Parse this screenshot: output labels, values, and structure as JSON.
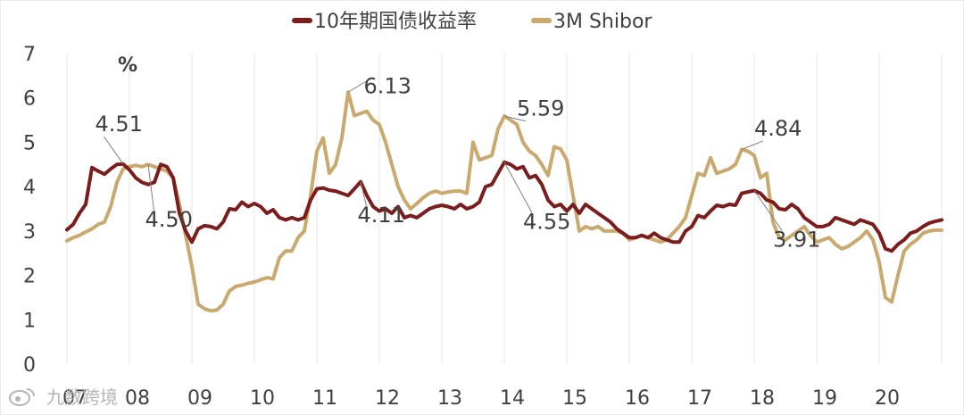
{
  "chart_data": {
    "type": "line",
    "ylabel": "%",
    "ylim": [
      0,
      7
    ],
    "xlim": [
      2007.0,
      2021.0
    ],
    "y_ticks": [
      0,
      1,
      2,
      3,
      4,
      5,
      6,
      7
    ],
    "x_ticks": [
      {
        "value": 2007.0,
        "label": "07"
      },
      {
        "value": 2008.0,
        "label": "08"
      },
      {
        "value": 2009.0,
        "label": "09"
      },
      {
        "value": 2010.0,
        "label": "10"
      },
      {
        "value": 2011.0,
        "label": "11"
      },
      {
        "value": 2012.0,
        "label": "12"
      },
      {
        "value": 2013.0,
        "label": "13"
      },
      {
        "value": 2014.0,
        "label": "14"
      },
      {
        "value": 2015.0,
        "label": "15"
      },
      {
        "value": 2016.0,
        "label": "16"
      },
      {
        "value": 2017.0,
        "label": "17"
      },
      {
        "value": 2018.0,
        "label": "18"
      },
      {
        "value": 2019.0,
        "label": "19"
      },
      {
        "value": 2020.0,
        "label": "20"
      }
    ],
    "grid": "vertical",
    "legend_position": "top",
    "series": [
      {
        "name": "10年期国债收益率",
        "color": "#7b1d1d",
        "points": [
          [
            2007.0,
            3.03
          ],
          [
            2007.1,
            3.15
          ],
          [
            2007.2,
            3.4
          ],
          [
            2007.3,
            3.6
          ],
          [
            2007.4,
            4.43
          ],
          [
            2007.5,
            4.35
          ],
          [
            2007.6,
            4.28
          ],
          [
            2007.7,
            4.4
          ],
          [
            2007.8,
            4.5
          ],
          [
            2007.9,
            4.51
          ],
          [
            2008.0,
            4.38
          ],
          [
            2008.1,
            4.2
          ],
          [
            2008.2,
            4.1
          ],
          [
            2008.3,
            4.05
          ],
          [
            2008.4,
            4.1
          ],
          [
            2008.5,
            4.5
          ],
          [
            2008.6,
            4.45
          ],
          [
            2008.7,
            4.2
          ],
          [
            2008.8,
            3.4
          ],
          [
            2008.9,
            3.0
          ],
          [
            2009.0,
            2.75
          ],
          [
            2009.1,
            3.05
          ],
          [
            2009.2,
            3.12
          ],
          [
            2009.3,
            3.1
          ],
          [
            2009.4,
            3.05
          ],
          [
            2009.5,
            3.2
          ],
          [
            2009.6,
            3.5
          ],
          [
            2009.7,
            3.48
          ],
          [
            2009.8,
            3.65
          ],
          [
            2009.9,
            3.55
          ],
          [
            2010.0,
            3.62
          ],
          [
            2010.1,
            3.55
          ],
          [
            2010.2,
            3.4
          ],
          [
            2010.3,
            3.48
          ],
          [
            2010.4,
            3.3
          ],
          [
            2010.5,
            3.25
          ],
          [
            2010.6,
            3.3
          ],
          [
            2010.7,
            3.25
          ],
          [
            2010.8,
            3.3
          ],
          [
            2010.9,
            3.7
          ],
          [
            2011.0,
            3.95
          ],
          [
            2011.1,
            3.97
          ],
          [
            2011.2,
            3.92
          ],
          [
            2011.3,
            3.9
          ],
          [
            2011.4,
            3.85
          ],
          [
            2011.5,
            3.8
          ],
          [
            2011.6,
            3.95
          ],
          [
            2011.7,
            4.11
          ],
          [
            2011.8,
            3.8
          ],
          [
            2011.9,
            3.55
          ],
          [
            2012.0,
            3.45
          ],
          [
            2012.1,
            3.5
          ],
          [
            2012.2,
            3.4
          ],
          [
            2012.3,
            3.55
          ],
          [
            2012.4,
            3.3
          ],
          [
            2012.5,
            3.35
          ],
          [
            2012.6,
            3.3
          ],
          [
            2012.7,
            3.4
          ],
          [
            2012.8,
            3.5
          ],
          [
            2012.9,
            3.55
          ],
          [
            2013.0,
            3.58
          ],
          [
            2013.1,
            3.55
          ],
          [
            2013.2,
            3.5
          ],
          [
            2013.3,
            3.6
          ],
          [
            2013.4,
            3.5
          ],
          [
            2013.5,
            3.55
          ],
          [
            2013.6,
            3.65
          ],
          [
            2013.7,
            4.0
          ],
          [
            2013.8,
            4.05
          ],
          [
            2013.9,
            4.3
          ],
          [
            2014.0,
            4.55
          ],
          [
            2014.1,
            4.5
          ],
          [
            2014.2,
            4.4
          ],
          [
            2014.3,
            4.45
          ],
          [
            2014.4,
            4.2
          ],
          [
            2014.5,
            4.25
          ],
          [
            2014.6,
            4.05
          ],
          [
            2014.7,
            3.7
          ],
          [
            2014.8,
            3.55
          ],
          [
            2014.9,
            3.6
          ],
          [
            2015.0,
            3.45
          ],
          [
            2015.1,
            3.6
          ],
          [
            2015.2,
            3.4
          ],
          [
            2015.3,
            3.6
          ],
          [
            2015.4,
            3.5
          ],
          [
            2015.5,
            3.4
          ],
          [
            2015.6,
            3.3
          ],
          [
            2015.7,
            3.2
          ],
          [
            2015.8,
            3.05
          ],
          [
            2015.9,
            2.95
          ],
          [
            2016.0,
            2.85
          ],
          [
            2016.1,
            2.85
          ],
          [
            2016.2,
            2.9
          ],
          [
            2016.3,
            2.85
          ],
          [
            2016.4,
            2.95
          ],
          [
            2016.5,
            2.85
          ],
          [
            2016.6,
            2.8
          ],
          [
            2016.7,
            2.75
          ],
          [
            2016.8,
            2.75
          ],
          [
            2016.9,
            3.0
          ],
          [
            2017.0,
            3.1
          ],
          [
            2017.1,
            3.35
          ],
          [
            2017.2,
            3.3
          ],
          [
            2017.3,
            3.45
          ],
          [
            2017.4,
            3.58
          ],
          [
            2017.5,
            3.55
          ],
          [
            2017.6,
            3.6
          ],
          [
            2017.7,
            3.58
          ],
          [
            2017.8,
            3.85
          ],
          [
            2017.9,
            3.88
          ],
          [
            2018.0,
            3.91
          ],
          [
            2018.1,
            3.85
          ],
          [
            2018.2,
            3.7
          ],
          [
            2018.3,
            3.65
          ],
          [
            2018.4,
            3.5
          ],
          [
            2018.5,
            3.48
          ],
          [
            2018.6,
            3.6
          ],
          [
            2018.7,
            3.5
          ],
          [
            2018.8,
            3.3
          ],
          [
            2018.9,
            3.2
          ],
          [
            2019.0,
            3.1
          ],
          [
            2019.1,
            3.1
          ],
          [
            2019.2,
            3.15
          ],
          [
            2019.3,
            3.3
          ],
          [
            2019.4,
            3.25
          ],
          [
            2019.5,
            3.2
          ],
          [
            2019.6,
            3.15
          ],
          [
            2019.7,
            3.25
          ],
          [
            2019.8,
            3.2
          ],
          [
            2019.9,
            3.15
          ],
          [
            2020.0,
            2.95
          ],
          [
            2020.1,
            2.6
          ],
          [
            2020.2,
            2.55
          ],
          [
            2020.3,
            2.7
          ],
          [
            2020.4,
            2.8
          ],
          [
            2020.5,
            2.95
          ],
          [
            2020.6,
            3.0
          ],
          [
            2020.7,
            3.1
          ],
          [
            2020.8,
            3.18
          ],
          [
            2020.9,
            3.22
          ],
          [
            2021.0,
            3.25
          ]
        ]
      },
      {
        "name": "3M Shibor",
        "color": "#c9a96e",
        "points": [
          [
            2007.0,
            2.78
          ],
          [
            2007.1,
            2.85
          ],
          [
            2007.2,
            2.9
          ],
          [
            2007.3,
            2.98
          ],
          [
            2007.4,
            3.05
          ],
          [
            2007.5,
            3.15
          ],
          [
            2007.6,
            3.2
          ],
          [
            2007.7,
            3.55
          ],
          [
            2007.8,
            4.1
          ],
          [
            2007.9,
            4.4
          ],
          [
            2008.0,
            4.45
          ],
          [
            2008.1,
            4.48
          ],
          [
            2008.2,
            4.45
          ],
          [
            2008.3,
            4.5
          ],
          [
            2008.4,
            4.45
          ],
          [
            2008.5,
            4.4
          ],
          [
            2008.6,
            4.35
          ],
          [
            2008.7,
            4.2
          ],
          [
            2008.8,
            3.6
          ],
          [
            2008.9,
            2.9
          ],
          [
            2009.0,
            2.2
          ],
          [
            2009.1,
            1.35
          ],
          [
            2009.2,
            1.25
          ],
          [
            2009.3,
            1.2
          ],
          [
            2009.4,
            1.22
          ],
          [
            2009.5,
            1.35
          ],
          [
            2009.6,
            1.65
          ],
          [
            2009.7,
            1.75
          ],
          [
            2009.8,
            1.78
          ],
          [
            2009.9,
            1.82
          ],
          [
            2010.0,
            1.85
          ],
          [
            2010.1,
            1.9
          ],
          [
            2010.2,
            1.95
          ],
          [
            2010.3,
            1.92
          ],
          [
            2010.4,
            2.4
          ],
          [
            2010.5,
            2.55
          ],
          [
            2010.6,
            2.55
          ],
          [
            2010.7,
            2.85
          ],
          [
            2010.8,
            3.0
          ],
          [
            2010.9,
            3.8
          ],
          [
            2011.0,
            4.8
          ],
          [
            2011.1,
            5.1
          ],
          [
            2011.2,
            4.3
          ],
          [
            2011.3,
            4.5
          ],
          [
            2011.4,
            5.1
          ],
          [
            2011.5,
            6.13
          ],
          [
            2011.6,
            5.6
          ],
          [
            2011.7,
            5.65
          ],
          [
            2011.8,
            5.7
          ],
          [
            2011.9,
            5.5
          ],
          [
            2012.0,
            5.4
          ],
          [
            2012.1,
            5.0
          ],
          [
            2012.2,
            4.5
          ],
          [
            2012.3,
            4.0
          ],
          [
            2012.4,
            3.7
          ],
          [
            2012.5,
            3.5
          ],
          [
            2012.6,
            3.62
          ],
          [
            2012.7,
            3.75
          ],
          [
            2012.8,
            3.85
          ],
          [
            2012.9,
            3.9
          ],
          [
            2013.0,
            3.85
          ],
          [
            2013.1,
            3.88
          ],
          [
            2013.2,
            3.9
          ],
          [
            2013.3,
            3.9
          ],
          [
            2013.4,
            3.85
          ],
          [
            2013.5,
            5.0
          ],
          [
            2013.6,
            4.6
          ],
          [
            2013.7,
            4.65
          ],
          [
            2013.8,
            4.7
          ],
          [
            2013.9,
            5.3
          ],
          [
            2014.0,
            5.59
          ],
          [
            2014.1,
            5.5
          ],
          [
            2014.2,
            5.4
          ],
          [
            2014.3,
            5.0
          ],
          [
            2014.4,
            4.8
          ],
          [
            2014.5,
            4.7
          ],
          [
            2014.6,
            4.5
          ],
          [
            2014.7,
            4.25
          ],
          [
            2014.8,
            4.9
          ],
          [
            2014.9,
            4.85
          ],
          [
            2015.0,
            4.6
          ],
          [
            2015.1,
            3.8
          ],
          [
            2015.2,
            3.0
          ],
          [
            2015.3,
            3.1
          ],
          [
            2015.4,
            3.05
          ],
          [
            2015.5,
            3.1
          ],
          [
            2015.6,
            3.0
          ],
          [
            2015.7,
            3.0
          ],
          [
            2015.8,
            3.0
          ],
          [
            2015.9,
            2.95
          ],
          [
            2016.0,
            2.8
          ],
          [
            2016.1,
            2.85
          ],
          [
            2016.2,
            2.9
          ],
          [
            2016.3,
            2.85
          ],
          [
            2016.4,
            2.8
          ],
          [
            2016.5,
            2.75
          ],
          [
            2016.6,
            2.8
          ],
          [
            2016.7,
            2.95
          ],
          [
            2016.8,
            3.1
          ],
          [
            2016.9,
            3.3
          ],
          [
            2017.0,
            3.8
          ],
          [
            2017.1,
            4.3
          ],
          [
            2017.2,
            4.25
          ],
          [
            2017.3,
            4.65
          ],
          [
            2017.4,
            4.3
          ],
          [
            2017.5,
            4.35
          ],
          [
            2017.6,
            4.4
          ],
          [
            2017.7,
            4.5
          ],
          [
            2017.8,
            4.84
          ],
          [
            2017.9,
            4.8
          ],
          [
            2018.0,
            4.7
          ],
          [
            2018.1,
            4.2
          ],
          [
            2018.2,
            4.3
          ],
          [
            2018.3,
            3.2
          ],
          [
            2018.4,
            2.85
          ],
          [
            2018.5,
            2.8
          ],
          [
            2018.6,
            2.9
          ],
          [
            2018.7,
            3.0
          ],
          [
            2018.8,
            3.1
          ],
          [
            2018.9,
            2.9
          ],
          [
            2019.0,
            2.75
          ],
          [
            2019.1,
            2.8
          ],
          [
            2019.2,
            2.85
          ],
          [
            2019.3,
            2.7
          ],
          [
            2019.4,
            2.6
          ],
          [
            2019.5,
            2.65
          ],
          [
            2019.6,
            2.75
          ],
          [
            2019.7,
            2.85
          ],
          [
            2019.8,
            3.0
          ],
          [
            2019.9,
            2.8
          ],
          [
            2020.0,
            2.3
          ],
          [
            2020.1,
            1.5
          ],
          [
            2020.2,
            1.4
          ],
          [
            2020.3,
            2.0
          ],
          [
            2020.4,
            2.55
          ],
          [
            2020.5,
            2.7
          ],
          [
            2020.6,
            2.8
          ],
          [
            2020.7,
            2.95
          ],
          [
            2020.8,
            3.0
          ],
          [
            2020.9,
            3.02
          ],
          [
            2021.0,
            3.02
          ]
        ]
      }
    ],
    "annotations": [
      {
        "text": "4.51",
        "x": 2007.9,
        "y": 4.51,
        "label_x": 2007.45,
        "label_y": 5.25
      },
      {
        "text": "4.50",
        "x": 2008.3,
        "y": 4.5,
        "label_x": 2008.25,
        "label_y": 3.1
      },
      {
        "text": "4.11",
        "x": 2011.7,
        "y": 4.11,
        "label_x": 2011.65,
        "label_y": 3.2
      },
      {
        "text": "6.13",
        "x": 2011.5,
        "y": 6.13,
        "label_x": 2011.75,
        "label_y": 6.1
      },
      {
        "text": "5.59",
        "x": 2014.0,
        "y": 5.59,
        "label_x": 2014.2,
        "label_y": 5.6
      },
      {
        "text": "4.55",
        "x": 2014.0,
        "y": 4.55,
        "label_x": 2014.3,
        "label_y": 3.05
      },
      {
        "text": "4.84",
        "x": 2017.8,
        "y": 4.84,
        "label_x": 2018.0,
        "label_y": 5.15
      },
      {
        "text": "3.91",
        "x": 2018.0,
        "y": 3.91,
        "label_x": 2018.3,
        "label_y": 2.65
      }
    ]
  },
  "watermark": {
    "text": "九数跨境",
    "icon": "weibo-icon"
  }
}
